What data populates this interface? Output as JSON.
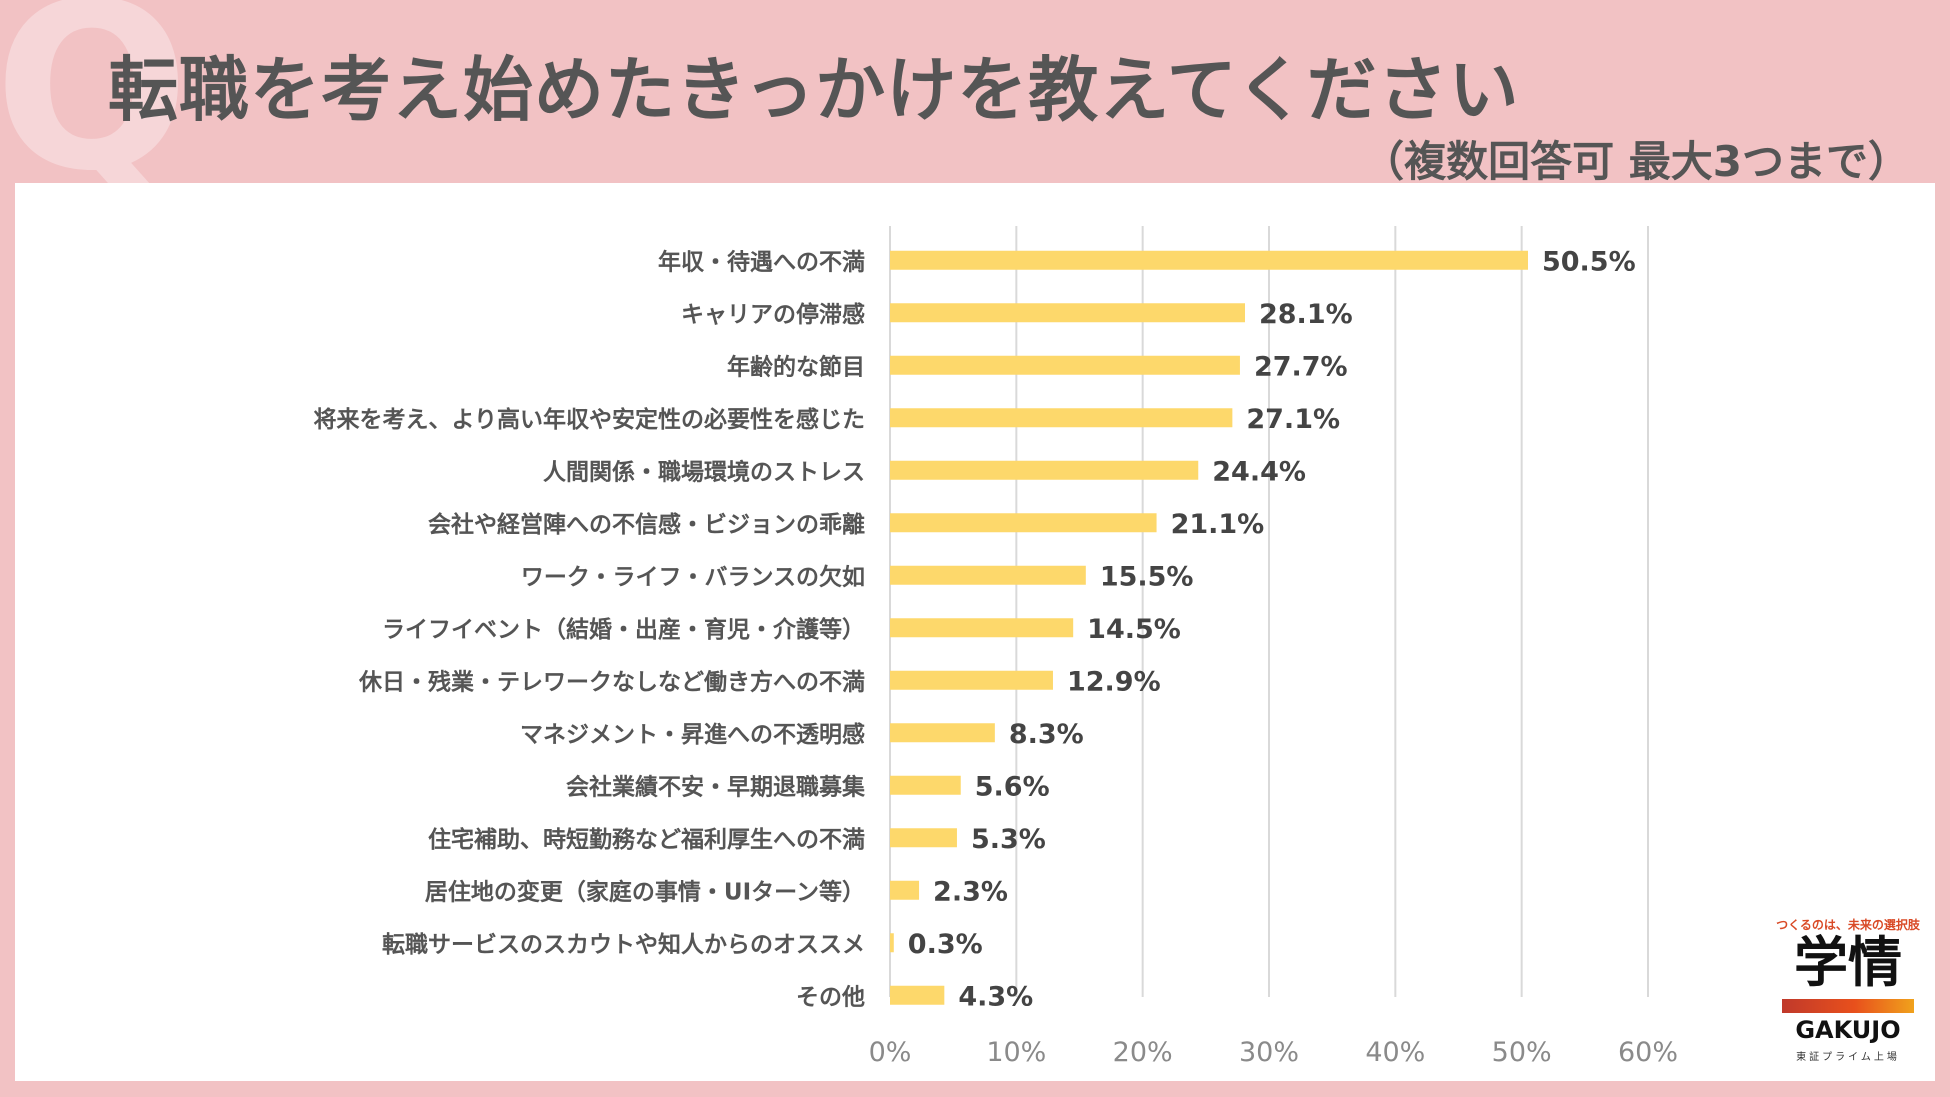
{
  "header": {
    "q_mark": "Q",
    "title": "転職を考え始めたきっかけを教えてください",
    "subtitle": "（複数回答可 最大3つまで）"
  },
  "logo": {
    "tagline": "つくるのは、未来の選択肢",
    "name_jp": "学情",
    "name_en": "GAKUJO",
    "sub": "東証プライム上場"
  },
  "colors": {
    "background": "#f2c2c4",
    "bar": "#fdd86b",
    "text": "#555555",
    "grid": "#d9d9d9"
  },
  "chart_data": {
    "type": "bar",
    "orientation": "horizontal",
    "title": "転職を考え始めたきっかけを教えてください",
    "categories": [
      "年収・待遇への不満",
      "キャリアの停滞感",
      "年齢的な節目",
      "将来を考え、より高い年収や安定性の必要性を感じた",
      "人間関係・職場環境のストレス",
      "会社や経営陣への不信感・ビジョンの乖離",
      "ワーク・ライフ・バランスの欠如",
      "ライフイベント（結婚・出産・育児・介護等）",
      "休日・残業・テレワークなしなど働き方への不満",
      "マネジメント・昇進への不透明感",
      "会社業績不安・早期退職募集",
      "住宅補助、時短勤務など福利厚生への不満",
      "居住地の変更（家庭の事情・UIターン等）",
      "転職サービスのスカウトや知人からのオススメ",
      "その他"
    ],
    "values": [
      50.5,
      28.1,
      27.7,
      27.1,
      24.4,
      21.1,
      15.5,
      14.5,
      12.9,
      8.3,
      5.6,
      5.3,
      2.3,
      0.3,
      4.3
    ],
    "value_labels": [
      "50.5%",
      "28.1%",
      "27.7%",
      "27.1%",
      "24.4%",
      "21.1%",
      "15.5%",
      "14.5%",
      "12.9%",
      "8.3%",
      "5.6%",
      "5.3%",
      "2.3%",
      "0.3%",
      "4.3%"
    ],
    "xlim": [
      0,
      60
    ],
    "xticks": [
      0,
      10,
      20,
      30,
      40,
      50,
      60
    ],
    "xtick_labels": [
      "0%",
      "10%",
      "20%",
      "30%",
      "40%",
      "50%",
      "60%"
    ],
    "grid": true,
    "xlabel": "",
    "ylabel": ""
  }
}
